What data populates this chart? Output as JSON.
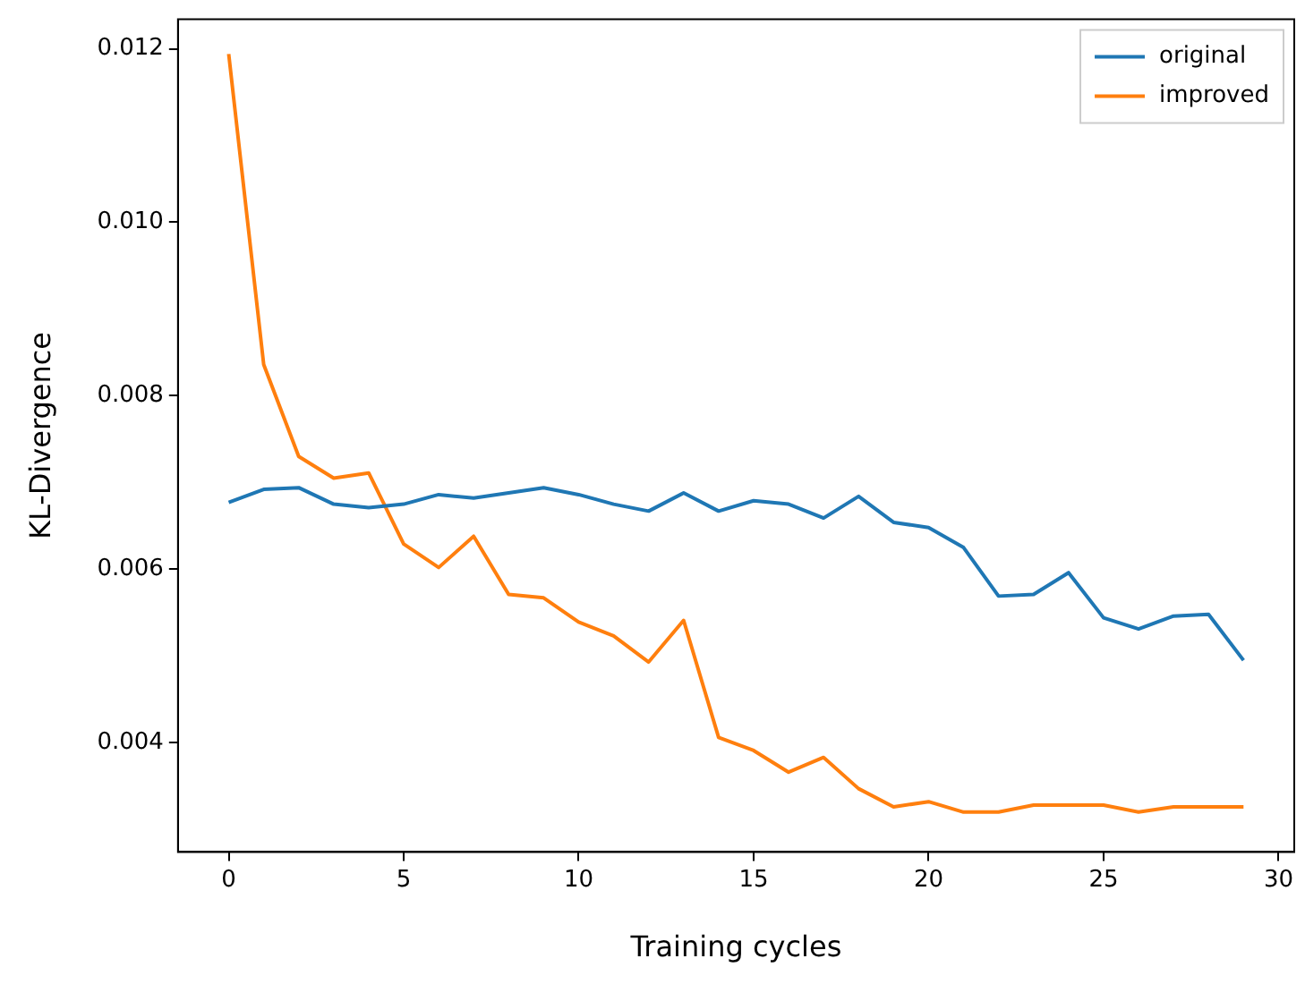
{
  "chart_data": {
    "type": "line",
    "xlabel": "Training cycles",
    "ylabel": "KL-Divergence",
    "x": [
      0,
      1,
      2,
      3,
      4,
      5,
      6,
      7,
      8,
      9,
      10,
      11,
      12,
      13,
      14,
      15,
      16,
      17,
      18,
      19,
      20,
      21,
      22,
      23,
      24,
      25,
      26,
      27,
      28,
      29
    ],
    "series": [
      {
        "name": "original",
        "color": "#1f77b4",
        "values": [
          0.00677,
          0.00692,
          0.00694,
          0.00675,
          0.00671,
          0.00675,
          0.00686,
          0.00682,
          0.00688,
          0.00694,
          0.00686,
          0.00675,
          0.00667,
          0.00688,
          0.00667,
          0.00679,
          0.00675,
          0.00659,
          0.00684,
          0.00654,
          0.00648,
          0.00625,
          0.00569,
          0.00571,
          0.00596,
          0.00544,
          0.00531,
          0.00546,
          0.00548,
          0.00495
        ]
      },
      {
        "name": "improved",
        "color": "#ff7f0e",
        "values": [
          0.01194,
          0.00836,
          0.0073,
          0.00705,
          0.00711,
          0.00629,
          0.00602,
          0.00638,
          0.00571,
          0.00567,
          0.00539,
          0.00523,
          0.00493,
          0.00541,
          0.00406,
          0.00391,
          0.00366,
          0.00383,
          0.00347,
          0.00326,
          0.00332,
          0.0032,
          0.0032,
          0.00328,
          0.00328,
          0.00328,
          0.0032,
          0.00326,
          0.00326,
          0.00326
        ]
      }
    ],
    "xlim": [
      -1.45,
      30.45
    ],
    "xticks": [
      0,
      5,
      10,
      15,
      20,
      25,
      30
    ],
    "ylim": [
      0.00274,
      0.01234
    ],
    "yticks": [
      0.004,
      0.006,
      0.008,
      {
        "value": 0.01,
        "label": "0.010"
      },
      0.012
    ],
    "legend": "top right",
    "grid": false,
    "marker": "none",
    "line_style": "solid"
  }
}
